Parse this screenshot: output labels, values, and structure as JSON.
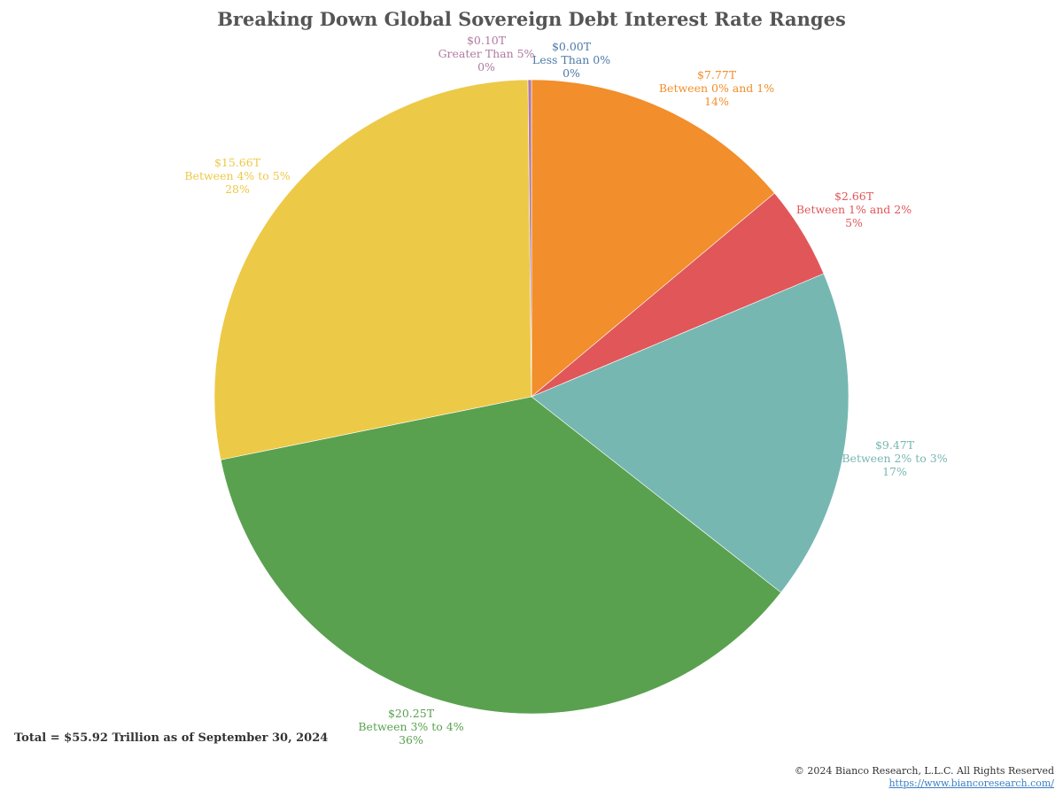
{
  "chart_data": {
    "type": "pie",
    "title": "Breaking Down Global Sovereign Debt Interest Rate Ranges",
    "start_angle_deg": 0,
    "direction": "clockwise",
    "slices": [
      {
        "label": "Less Than 0%",
        "value_text": "$0.00T",
        "pct_text": "0%",
        "value": 0.0,
        "color": "#4e79a7"
      },
      {
        "label": "Between 0% and 1%",
        "value_text": "$7.77T",
        "pct_text": "14%",
        "value": 7.77,
        "color": "#f28e2b"
      },
      {
        "label": "Between 1% and 2%",
        "value_text": "$2.66T",
        "pct_text": "5%",
        "value": 2.66,
        "color": "#e15759"
      },
      {
        "label": "Between 2% to 3%",
        "value_text": "$9.47T",
        "pct_text": "17%",
        "value": 9.47,
        "color": "#76b7b2"
      },
      {
        "label": "Between 3% to 4%",
        "value_text": "$20.25T",
        "pct_text": "36%",
        "value": 20.25,
        "color": "#59a14f"
      },
      {
        "label": "Between 4% to 5%",
        "value_text": "$15.66T",
        "pct_text": "28%",
        "value": 15.66,
        "color": "#edc948"
      },
      {
        "label": "Greater Than 5%",
        "value_text": "$0.10T",
        "pct_text": "0%",
        "value": 0.1,
        "color": "#b07aa1"
      }
    ]
  },
  "note": {
    "total": "Total = $55.92 Trillion as of September 30, 2024"
  },
  "footer": {
    "copyright": "© 2024 Bianco Research, L.L.C. All Rights Reserved",
    "link": "https://www.biancoresearch.com/"
  }
}
